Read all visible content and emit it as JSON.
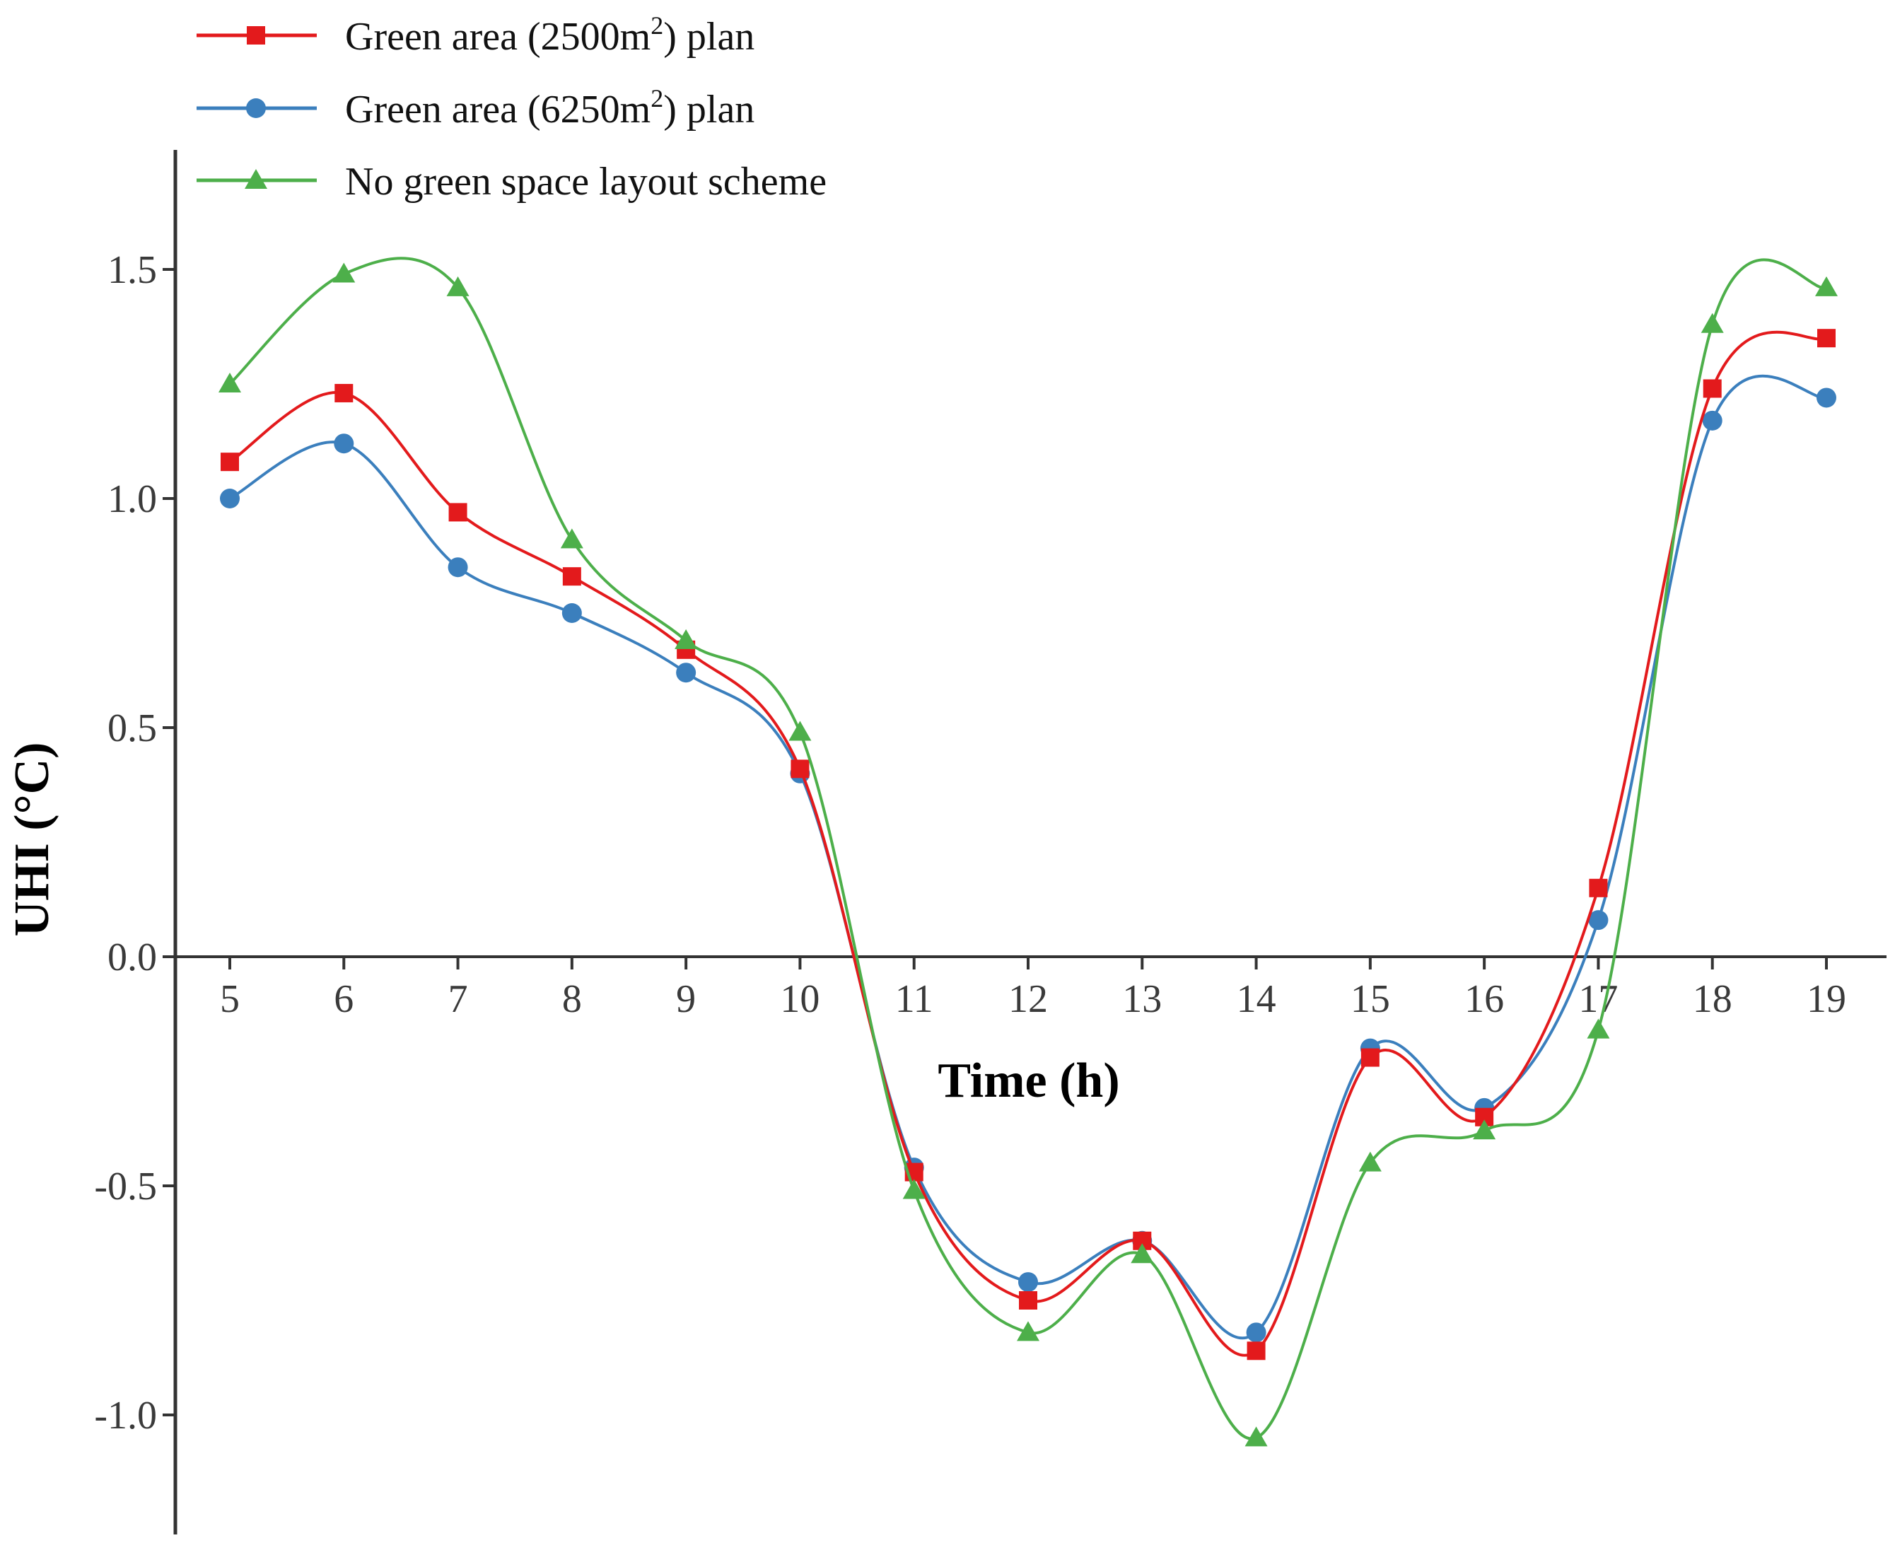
{
  "chart_data": {
    "type": "line",
    "title": "",
    "xlabel": "Time (h)",
    "ylabel": "UHI (°C)",
    "x": [
      5,
      6,
      7,
      8,
      9,
      10,
      11,
      12,
      13,
      14,
      15,
      16,
      17,
      18,
      19
    ],
    "xlim": [
      4.5,
      19.5
    ],
    "ylim": [
      -1.25,
      1.75
    ],
    "yticks": [
      1.5,
      1.0,
      0.5,
      0.0,
      -0.5,
      -1.0
    ],
    "ytick_labels": [
      "1.5",
      "1.0",
      "0.5",
      "0.0",
      "-0.5",
      "-1.0"
    ],
    "xtick_labels": [
      "5",
      "6",
      "7",
      "8",
      "9",
      "10",
      "11",
      "12",
      "13",
      "14",
      "15",
      "16",
      "17",
      "18",
      "19"
    ],
    "legend_position": "top-left",
    "grid": false,
    "series": [
      {
        "name": "Green area (2500m2) plan",
        "label_main": "Green area (2500m",
        "label_sup": "2",
        "label_end": ") plan",
        "color": "#e31a1c",
        "marker": "square",
        "values": [
          1.08,
          1.23,
          0.97,
          0.83,
          0.67,
          0.41,
          -0.47,
          -0.75,
          -0.62,
          -0.86,
          -0.22,
          -0.35,
          0.15,
          1.24,
          1.35
        ]
      },
      {
        "name": "Green area (6250m2) plan",
        "label_main": "Green area (6250m",
        "label_sup": "2",
        "label_end": ") plan",
        "color": "#3b7fbd",
        "marker": "circle",
        "values": [
          1.0,
          1.12,
          0.85,
          0.75,
          0.62,
          0.4,
          -0.46,
          -0.71,
          -0.62,
          -0.82,
          -0.2,
          -0.33,
          0.08,
          1.17,
          1.22
        ]
      },
      {
        "name": "No green space layout scheme",
        "label_main": "No green space layout scheme",
        "label_sup": "",
        "label_end": "",
        "color": "#4daf4a",
        "marker": "triangle",
        "values": [
          1.25,
          1.49,
          1.46,
          0.91,
          0.69,
          0.49,
          -0.51,
          -0.82,
          -0.65,
          -1.05,
          -0.45,
          -0.38,
          -0.16,
          1.38,
          1.46
        ]
      }
    ]
  }
}
